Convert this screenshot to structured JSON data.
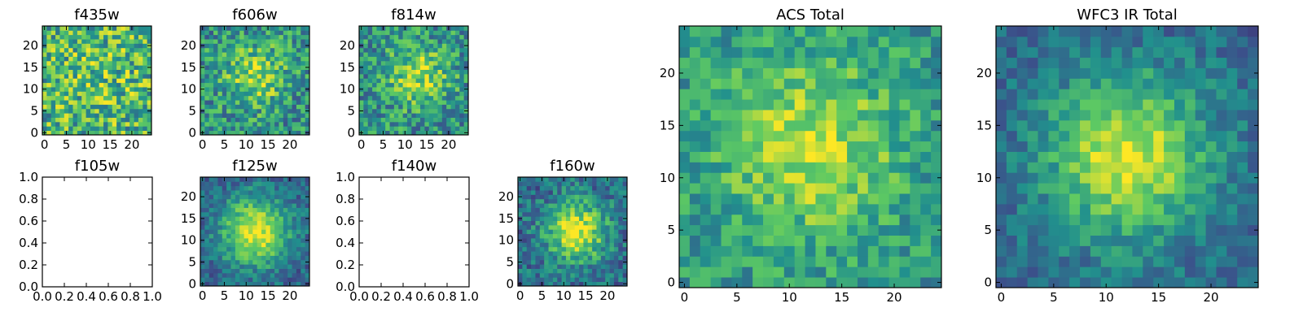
{
  "figure": {
    "colormap": [
      "#440154",
      "#3b528b",
      "#21908d",
      "#5dc963",
      "#fde725"
    ]
  },
  "chart_data": [
    {
      "type": "heatmap",
      "title": "f435w",
      "nx": 25,
      "ny": 25,
      "xlim": [
        -0.5,
        24.5
      ],
      "ylim": [
        -0.5,
        24.5
      ],
      "xticks": [
        0,
        5,
        10,
        15,
        20
      ],
      "yticks": [
        0,
        5,
        10,
        15,
        20
      ],
      "grid": false,
      "profile": {
        "peak": [
          12,
          12
        ],
        "sigma": 9,
        "amplitude": 0.1,
        "background": 0.62,
        "noise": 0.32
      }
    },
    {
      "type": "heatmap",
      "title": "f606w",
      "nx": 25,
      "ny": 25,
      "xlim": [
        -0.5,
        24.5
      ],
      "ylim": [
        -0.5,
        24.5
      ],
      "xticks": [
        0,
        5,
        10,
        15,
        20
      ],
      "yticks": [
        0,
        5,
        10,
        15,
        20
      ],
      "grid": false,
      "profile": {
        "peak": [
          12,
          13
        ],
        "sigma": 5,
        "amplitude": 0.35,
        "background": 0.5,
        "noise": 0.26
      }
    },
    {
      "type": "heatmap",
      "title": "f814w",
      "nx": 25,
      "ny": 25,
      "xlim": [
        -0.5,
        24.5
      ],
      "ylim": [
        -0.5,
        24.5
      ],
      "xticks": [
        0,
        5,
        10,
        15,
        20
      ],
      "yticks": [
        0,
        5,
        10,
        15,
        20
      ],
      "grid": false,
      "profile": {
        "peak": [
          13,
          13
        ],
        "sigma": 5,
        "amplitude": 0.35,
        "background": 0.5,
        "noise": 0.26
      }
    },
    {
      "type": "heatmap",
      "title": "f105w",
      "empty": true,
      "xlim": [
        0,
        1
      ],
      "ylim": [
        0,
        1
      ],
      "xticks": [
        0.0,
        0.2,
        0.4,
        0.6,
        0.8,
        1.0
      ],
      "yticks": [
        0.0,
        0.2,
        0.4,
        0.6,
        0.8,
        1.0
      ],
      "tick_labels_x": [
        "0.0",
        "0.2",
        "0.4",
        "0.6",
        "0.8",
        "1.0"
      ],
      "tick_labels_y": [
        "0.0",
        "0.2",
        "0.4",
        "0.6",
        "0.8",
        "1.0"
      ],
      "grid": false
    },
    {
      "type": "heatmap",
      "title": "f125w",
      "nx": 25,
      "ny": 25,
      "xlim": [
        -0.5,
        24.5
      ],
      "ylim": [
        -0.5,
        24.5
      ],
      "xticks": [
        0,
        5,
        10,
        15,
        20
      ],
      "yticks": [
        0,
        5,
        10,
        15,
        20
      ],
      "grid": false,
      "profile": {
        "peak": [
          12,
          12
        ],
        "sigma": 5.5,
        "amplitude": 0.65,
        "background": 0.32,
        "noise": 0.16
      }
    },
    {
      "type": "heatmap",
      "title": "f140w",
      "empty": true,
      "xlim": [
        0,
        1
      ],
      "ylim": [
        0,
        1
      ],
      "xticks": [
        0.0,
        0.2,
        0.4,
        0.6,
        0.8,
        1.0
      ],
      "yticks": [
        0.0,
        0.2,
        0.4,
        0.6,
        0.8,
        1.0
      ],
      "tick_labels_x": [
        "0.0",
        "0.2",
        "0.4",
        "0.6",
        "0.8",
        "1.0"
      ],
      "tick_labels_y": [
        "0.0",
        "0.2",
        "0.4",
        "0.6",
        "0.8",
        "1.0"
      ],
      "grid": false
    },
    {
      "type": "heatmap",
      "title": "f160w",
      "nx": 25,
      "ny": 25,
      "xlim": [
        -0.5,
        24.5
      ],
      "ylim": [
        -0.5,
        24.5
      ],
      "xticks": [
        0,
        5,
        10,
        15,
        20
      ],
      "yticks": [
        0,
        5,
        10,
        15,
        20
      ],
      "grid": false,
      "profile": {
        "peak": [
          13,
          12
        ],
        "sigma": 5,
        "amplitude": 0.6,
        "background": 0.35,
        "noise": 0.2
      }
    },
    {
      "type": "heatmap",
      "title": "ACS Total",
      "nx": 25,
      "ny": 25,
      "xlim": [
        -0.5,
        24.5
      ],
      "ylim": [
        -0.5,
        24.5
      ],
      "xticks": [
        0,
        5,
        10,
        15,
        20
      ],
      "yticks": [
        0,
        5,
        10,
        15,
        20
      ],
      "grid": false,
      "profile": {
        "peak": [
          12,
          13
        ],
        "sigma": 6,
        "amplitude": 0.38,
        "background": 0.52,
        "noise": 0.18
      }
    },
    {
      "type": "heatmap",
      "title": "WFC3 IR Total",
      "nx": 25,
      "ny": 25,
      "xlim": [
        -0.5,
        24.5
      ],
      "ylim": [
        -0.5,
        24.5
      ],
      "xticks": [
        0,
        5,
        10,
        15,
        20
      ],
      "yticks": [
        0,
        5,
        10,
        15,
        20
      ],
      "grid": false,
      "profile": {
        "peak": [
          12,
          12
        ],
        "sigma": 5.5,
        "amplitude": 0.62,
        "background": 0.33,
        "noise": 0.14
      }
    }
  ]
}
